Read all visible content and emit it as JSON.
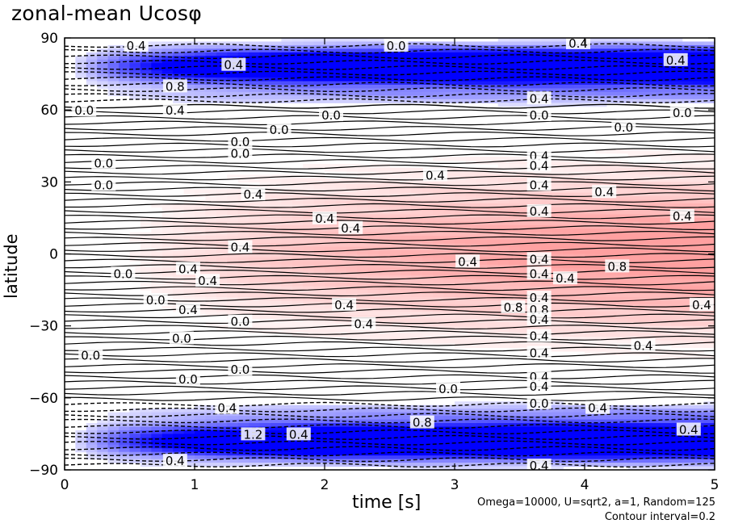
{
  "title": "zonal-mean Ucosφ",
  "chart_data": {
    "type": "heatmap",
    "title": "zonal-mean Ucosφ",
    "xlabel": "time [s]",
    "ylabel": "latitude",
    "xlim": [
      0,
      5
    ],
    "ylim": [
      -90,
      90
    ],
    "xticks": [
      "0",
      "1",
      "2",
      "3",
      "4",
      "5"
    ],
    "yticks": [
      "90",
      "60",
      "30",
      "0",
      "−30",
      "−60",
      "−90"
    ],
    "xtick_values": [
      0,
      1,
      2,
      3,
      4,
      5
    ],
    "ytick_values": [
      90,
      60,
      30,
      0,
      -30,
      -60,
      -90
    ],
    "contour_interval": 0.2,
    "colors": {
      "negative": "#0000ff",
      "positive": "#ff8080",
      "zero": "#ffffff"
    },
    "notes": [
      "Omega=10000, U=sqrt2, a=1, Random=125",
      "Contour interval=0.2"
    ],
    "contour_labels": [
      {
        "t": 0.55,
        "lat": 87,
        "text": "0.4"
      },
      {
        "t": 1.3,
        "lat": 79,
        "text": "0.4"
      },
      {
        "t": 2.55,
        "lat": 87,
        "text": "0.0"
      },
      {
        "t": 3.95,
        "lat": 88,
        "text": "0.4"
      },
      {
        "t": 4.7,
        "lat": 81,
        "text": "0.4"
      },
      {
        "t": 0.85,
        "lat": 70,
        "text": "0.8"
      },
      {
        "t": 0.85,
        "lat": 60,
        "text": "0.4"
      },
      {
        "t": 3.65,
        "lat": 65,
        "text": "0.4"
      },
      {
        "t": 3.65,
        "lat": 58,
        "text": "0.0"
      },
      {
        "t": 0.15,
        "lat": 60,
        "text": "0.0"
      },
      {
        "t": 2.05,
        "lat": 58,
        "text": "0.0"
      },
      {
        "t": 1.65,
        "lat": 52,
        "text": "0.0"
      },
      {
        "t": 4.3,
        "lat": 53,
        "text": "0.0"
      },
      {
        "t": 4.75,
        "lat": 59,
        "text": "0.0"
      },
      {
        "t": 1.35,
        "lat": 47,
        "text": "0.0"
      },
      {
        "t": 1.35,
        "lat": 42,
        "text": "0.0"
      },
      {
        "t": 0.3,
        "lat": 38,
        "text": "0.0"
      },
      {
        "t": 0.3,
        "lat": 29,
        "text": "0.0"
      },
      {
        "t": 2.85,
        "lat": 33,
        "text": "0.4"
      },
      {
        "t": 3.65,
        "lat": 41,
        "text": "0.4"
      },
      {
        "t": 3.65,
        "lat": 37,
        "text": "0.4"
      },
      {
        "t": 3.65,
        "lat": 29,
        "text": "0.4"
      },
      {
        "t": 4.15,
        "lat": 26,
        "text": "0.4"
      },
      {
        "t": 1.45,
        "lat": 25,
        "text": "0.4"
      },
      {
        "t": 3.65,
        "lat": 18,
        "text": "0.4"
      },
      {
        "t": 4.75,
        "lat": 16,
        "text": "0.4"
      },
      {
        "t": 2.0,
        "lat": 15,
        "text": "0.4"
      },
      {
        "t": 2.2,
        "lat": 11,
        "text": "0.4"
      },
      {
        "t": 1.35,
        "lat": 3,
        "text": "0.4"
      },
      {
        "t": 3.1,
        "lat": -3,
        "text": "0.4"
      },
      {
        "t": 3.65,
        "lat": -2,
        "text": "0.4"
      },
      {
        "t": 4.25,
        "lat": -5,
        "text": "0.8"
      },
      {
        "t": 3.65,
        "lat": -8,
        "text": "0.4"
      },
      {
        "t": 3.85,
        "lat": -10,
        "text": "0.4"
      },
      {
        "t": 0.95,
        "lat": -6,
        "text": "0.4"
      },
      {
        "t": 0.45,
        "lat": -8,
        "text": "0.0"
      },
      {
        "t": 1.1,
        "lat": -11,
        "text": "0.4"
      },
      {
        "t": 0.7,
        "lat": -19,
        "text": "0.0"
      },
      {
        "t": 2.15,
        "lat": -21,
        "text": "0.4"
      },
      {
        "t": 3.45,
        "lat": -22,
        "text": "0.8"
      },
      {
        "t": 3.65,
        "lat": -23,
        "text": "0.8"
      },
      {
        "t": 3.65,
        "lat": -18,
        "text": "0.4"
      },
      {
        "t": 3.65,
        "lat": -27,
        "text": "0.4"
      },
      {
        "t": 4.9,
        "lat": -21,
        "text": "0.4"
      },
      {
        "t": 0.95,
        "lat": -23,
        "text": "0.4"
      },
      {
        "t": 1.35,
        "lat": -28,
        "text": "0.0"
      },
      {
        "t": 2.3,
        "lat": -29,
        "text": "0.4"
      },
      {
        "t": 3.65,
        "lat": -34,
        "text": "0.4"
      },
      {
        "t": 3.65,
        "lat": -41,
        "text": "0.4"
      },
      {
        "t": 4.45,
        "lat": -38,
        "text": "0.4"
      },
      {
        "t": 0.9,
        "lat": -35,
        "text": "0.0"
      },
      {
        "t": 0.2,
        "lat": -42,
        "text": "0.0"
      },
      {
        "t": 1.35,
        "lat": -48,
        "text": "0.0"
      },
      {
        "t": 3.65,
        "lat": -51,
        "text": "0.4"
      },
      {
        "t": 3.65,
        "lat": -55,
        "text": "0.4"
      },
      {
        "t": 2.95,
        "lat": -56,
        "text": "0.0"
      },
      {
        "t": 0.95,
        "lat": -52,
        "text": "0.0"
      },
      {
        "t": 1.25,
        "lat": -64,
        "text": "0.4"
      },
      {
        "t": 3.65,
        "lat": -62,
        "text": "0.0"
      },
      {
        "t": 4.1,
        "lat": -64,
        "text": "0.4"
      },
      {
        "t": 2.75,
        "lat": -70,
        "text": "0.8"
      },
      {
        "t": 1.45,
        "lat": -75,
        "text": "1.2"
      },
      {
        "t": 1.8,
        "lat": -75,
        "text": "0.4"
      },
      {
        "t": 4.8,
        "lat": -73,
        "text": "0.4"
      },
      {
        "t": 0.85,
        "lat": -86,
        "text": "0.4"
      },
      {
        "t": 3.65,
        "lat": -88,
        "text": "0.4"
      }
    ]
  }
}
